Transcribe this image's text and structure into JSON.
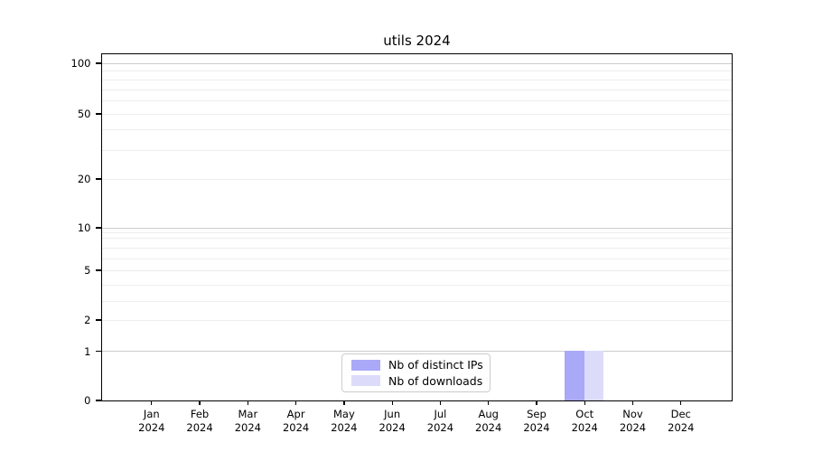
{
  "chart_data": {
    "type": "bar",
    "title": "utils 2024",
    "categories": [
      "Jan",
      "Feb",
      "Mar",
      "Apr",
      "May",
      "Jun",
      "Jul",
      "Aug",
      "Sep",
      "Oct",
      "Nov",
      "Dec"
    ],
    "year_label": "2024",
    "series": [
      {
        "name": "Nb of distinct IPs",
        "color": "#a9a9f7",
        "values": [
          0,
          0,
          0,
          0,
          0,
          0,
          0,
          0,
          0,
          1,
          0,
          0
        ]
      },
      {
        "name": "Nb of downloads",
        "color": "#dcdcfa",
        "values": [
          0,
          0,
          0,
          0,
          0,
          0,
          0,
          0,
          0,
          1,
          0,
          0
        ]
      }
    ],
    "xlabel": "",
    "ylabel": "",
    "yscale": "symlog",
    "yticks": [
      0,
      1,
      2,
      5,
      10,
      20,
      50,
      100
    ],
    "ylim": [
      0,
      110
    ],
    "grid": "both",
    "legend_position": "lower center"
  },
  "colors": {
    "background": "#ffffff",
    "axis": "#000000",
    "grid_major": "#cccccc",
    "grid_minor": "#ededed",
    "legend_border": "#cccccc",
    "text": "#000000"
  }
}
